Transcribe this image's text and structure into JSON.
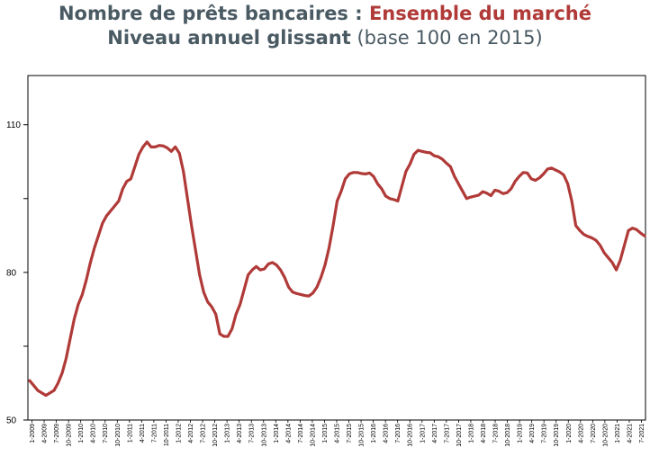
{
  "chart_data": {
    "type": "line",
    "title_part1": "Nombre de prêts bancaires : ",
    "title_part2": "Ensemble du marché",
    "subtitle_bold": "Niveau annuel glissant",
    "subtitle_rest": " (base 100 en 2015)",
    "xlabel": "",
    "ylabel": "",
    "ylim": [
      50,
      120
    ],
    "yticks": [
      50,
      80,
      110
    ],
    "x_tick_labels": [
      "1-2009",
      "4-2009",
      "7-2009",
      "10-2009",
      "1-2010",
      "4-2010",
      "7-2010",
      "10-2010",
      "1-2011",
      "4-2011",
      "7-2011",
      "10-2011",
      "1-2012",
      "4-2012",
      "7-2012",
      "10-2012",
      "1-2013",
      "4-2013",
      "7-2013",
      "10-2013",
      "1-2014",
      "4-2014",
      "7-2014",
      "10-2014",
      "1-2015",
      "4-2015",
      "7-2015",
      "10-2015",
      "1-2016",
      "4-2016",
      "7-2016",
      "10-2016",
      "1-2017",
      "4-2017",
      "7-2017",
      "10-2017",
      "1-2018",
      "4-2018",
      "7-2018",
      "10-2018",
      "1-2019",
      "4-2019",
      "7-2019",
      "10-2019",
      "1-2020",
      "4-2020",
      "7-2020",
      "10-2020",
      "1-2021",
      "4-2021",
      "7-2021"
    ],
    "series": [
      {
        "color": "#b03a38",
        "values": [
          58,
          57,
          56,
          55.5,
          55,
          55.5,
          56,
          57.5,
          59.5,
          62.5,
          66.5,
          70.5,
          73.5,
          75.5,
          78.5,
          82,
          85,
          87.5,
          90,
          91.5,
          92.5,
          93.5,
          94.5,
          97,
          98.5,
          99,
          101.5,
          104,
          105.5,
          106.5,
          105.5,
          105.5,
          105.8,
          105.7,
          105.3,
          104.6,
          105.5,
          104.2,
          100.5,
          95,
          89.5,
          84.5,
          79.5,
          76,
          74,
          73,
          71.5,
          67.5,
          67,
          67,
          68.5,
          71.5,
          73.5,
          76.5,
          79.5,
          80.5,
          81.2,
          80.5,
          80.7,
          81.7,
          82,
          81.5,
          80.5,
          79,
          77,
          76,
          75.7,
          75.5,
          75.3,
          75.2,
          75.8,
          77,
          79,
          81.5,
          85,
          89.5,
          94.5,
          96.5,
          99,
          100,
          100.3,
          100.3,
          100.1,
          100,
          100.2,
          99.5,
          98,
          97,
          95.5,
          95,
          94.8,
          94.5,
          97.5,
          100.5,
          102,
          104,
          104.8,
          104.6,
          104.4,
          104.3,
          103.7,
          103.5,
          103,
          102.2,
          101.5,
          99.5,
          98,
          96.5,
          95,
          95.3,
          95.5,
          95.7,
          96.4,
          96.1,
          95.6,
          96.7,
          96.5,
          96,
          96.2,
          97,
          98.5,
          99.5,
          100.3,
          100.2,
          99,
          98.7,
          99.2,
          100,
          101,
          101.2,
          100.8,
          100.4,
          99.8,
          98,
          94.5,
          89.5,
          88.5,
          87.7,
          87.3,
          87,
          86.5,
          85.5,
          84,
          83,
          82,
          80.5,
          82.5,
          85.5,
          88.5,
          89,
          88.7,
          88,
          87.4
        ]
      }
    ]
  }
}
